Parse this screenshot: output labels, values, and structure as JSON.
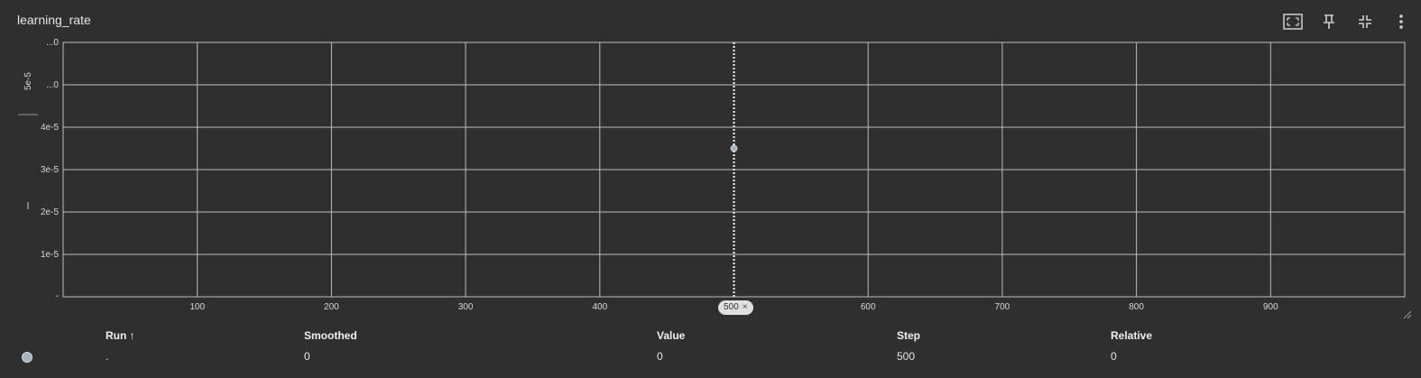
{
  "card": {
    "title": "learning_rate",
    "toolbar": [
      {
        "name": "fit-domain-icon"
      },
      {
        "name": "pin-icon"
      },
      {
        "name": "collapse-icon"
      },
      {
        "name": "more-vert-icon"
      }
    ]
  },
  "chart_data": {
    "type": "scatter",
    "title": "learning_rate",
    "xlabel": "",
    "ylabel": "",
    "xlim": [
      0,
      1000
    ],
    "ylim": [
      0,
      6e-05
    ],
    "x_ticks": [
      100,
      200,
      300,
      400,
      500,
      600,
      700,
      800,
      900
    ],
    "x_tick_labels": [
      "100",
      "200",
      "300",
      "400",
      "",
      "600",
      "700",
      "800",
      "900"
    ],
    "y_ticks": [
      1e-05,
      2e-05,
      3e-05,
      4e-05,
      5e-05,
      6e-05
    ],
    "y_tick_labels": [
      "1e-5",
      "2e-5",
      "3e-5",
      "4e-5",
      "...0",
      "...0"
    ],
    "y_side_labels": [
      "5e-5",
      "—"
    ],
    "grid": true,
    "series": [
      {
        "x": [
          500
        ],
        "y": [
          3.5e-05
        ],
        "color": "#a9b3c2"
      }
    ],
    "hover_step": 500,
    "hover_step_label": "500",
    "hover_close_label": "×"
  },
  "table": {
    "headers": {
      "run": "Run ↑",
      "smoothed": "Smoothed",
      "value": "Value",
      "step": "Step",
      "relative": "Relative"
    },
    "rows": [
      {
        "run": ".",
        "smoothed": "0",
        "value": "0",
        "step": "500",
        "relative": "0",
        "color": "#a9b3c2"
      }
    ]
  }
}
